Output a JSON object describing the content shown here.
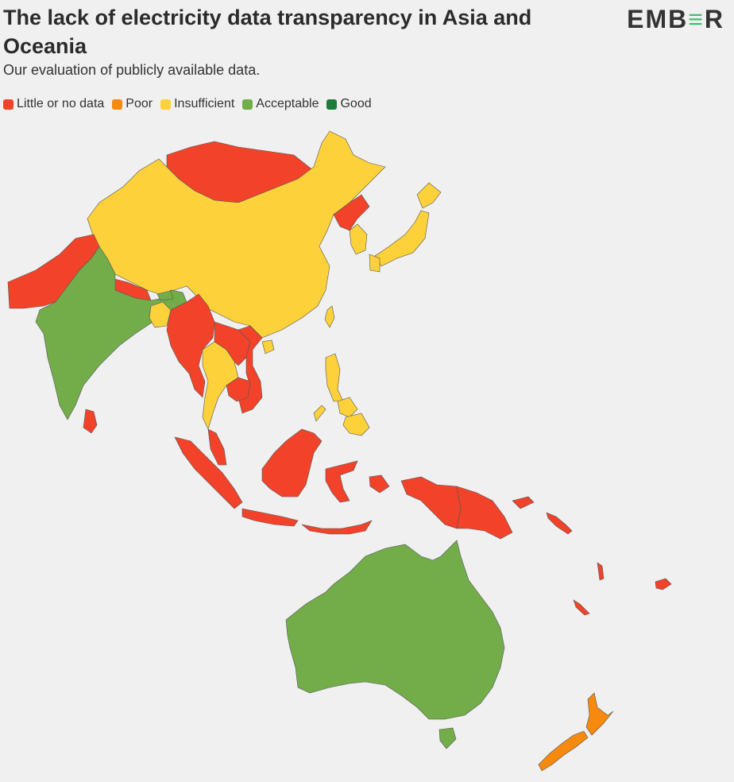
{
  "header": {
    "title": "The lack of electricity data transparency in Asia and Oceania",
    "subtitle": "Our evaluation of publicly available data.",
    "logo_text_1": "EMB",
    "logo_text_2": "≡",
    "logo_text_3": "R"
  },
  "legend": [
    {
      "label": "Little or no data",
      "color": "#f2432a"
    },
    {
      "label": "Poor",
      "color": "#f58a0e"
    },
    {
      "label": "Insufficient",
      "color": "#fdd13a"
    },
    {
      "label": "Acceptable",
      "color": "#72ad4a"
    },
    {
      "label": "Good",
      "color": "#1e7b3a"
    }
  ],
  "colors": {
    "little": "#f2432a",
    "poor": "#f58a0e",
    "insufficient": "#fdd13a",
    "acceptable": "#72ad4a",
    "good": "#1e7b3a"
  }
}
